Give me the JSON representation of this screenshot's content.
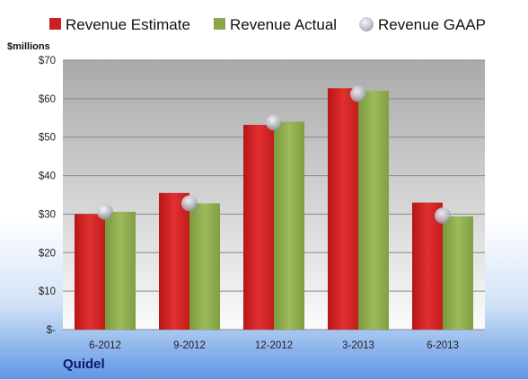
{
  "chart_data": {
    "type": "bar",
    "categories": [
      "6-2012",
      "9-2012",
      "12-2012",
      "3-2013",
      "6-2013"
    ],
    "series": [
      {
        "name": "Revenue Estimate",
        "kind": "bar",
        "color": "#cc1f1f",
        "values": [
          30.0,
          35.5,
          53.2,
          62.7,
          33.0
        ]
      },
      {
        "name": "Revenue Actual",
        "kind": "bar",
        "color": "#8aa84a",
        "values": [
          30.6,
          32.8,
          54.0,
          62.0,
          29.4
        ]
      },
      {
        "name": "Revenue GAAP",
        "kind": "marker",
        "color": "#c8ccd6",
        "values": [
          30.6,
          32.8,
          53.8,
          61.2,
          29.6
        ]
      }
    ],
    "y_unit_label": "$millions",
    "ylim": [
      0,
      70
    ],
    "y_ticks": [
      0,
      10,
      20,
      30,
      40,
      50,
      60,
      70
    ],
    "y_tick_labels": [
      "$-",
      "$10",
      "$20",
      "$30",
      "$40",
      "$50",
      "$60",
      "$70"
    ],
    "grid": true,
    "legend_position": "top",
    "company": "Quidel"
  }
}
